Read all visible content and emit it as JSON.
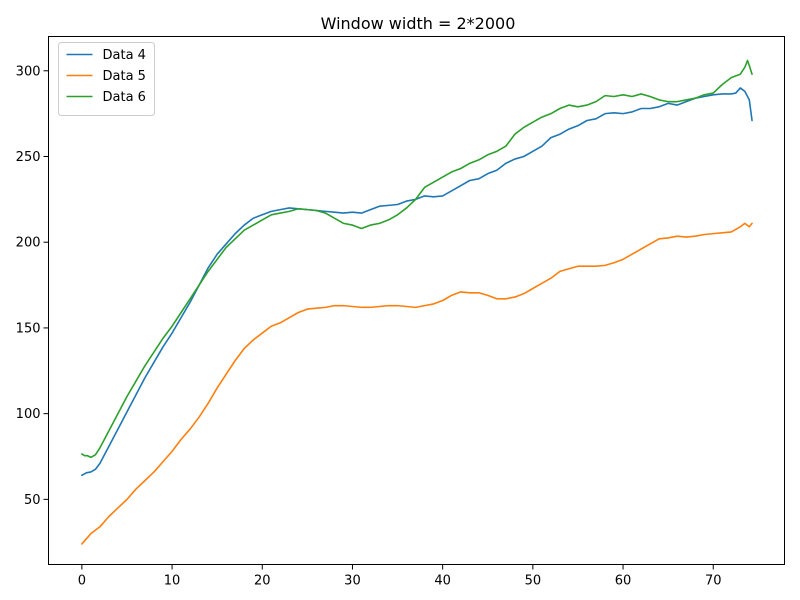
{
  "chart_data": {
    "type": "line",
    "title": "Window width = 2*2000",
    "xlabel": "",
    "ylabel": "",
    "xlim": [
      -3.7,
      77.9
    ],
    "ylim": [
      12,
      320
    ],
    "xticks": [
      0,
      10,
      20,
      30,
      40,
      50,
      60,
      70
    ],
    "yticks": [
      50,
      100,
      150,
      200,
      250,
      300
    ],
    "grid": false,
    "legend": "top-left",
    "series": [
      {
        "name": "Data 4",
        "color": "#1f77b4",
        "x": [
          0,
          0.5,
          1,
          1.5,
          2,
          3,
          4,
          5,
          6,
          7,
          8,
          9,
          10,
          11,
          12,
          13,
          14,
          15,
          16,
          17,
          18,
          19,
          20,
          21,
          22,
          23,
          24,
          25,
          26,
          27,
          28,
          29,
          30,
          31,
          32,
          33,
          34,
          35,
          36,
          37,
          38,
          39,
          40,
          41,
          42,
          43,
          44,
          45,
          46,
          47,
          48,
          49,
          50,
          51,
          52,
          53,
          54,
          55,
          56,
          57,
          58,
          59,
          60,
          61,
          62,
          63,
          64,
          65,
          66,
          67,
          68,
          69,
          70,
          71,
          72,
          72.5,
          73,
          73.5,
          74,
          74.3
        ],
        "values": [
          64,
          65.5,
          66,
          67.5,
          71,
          81,
          91,
          101,
          111,
          121,
          130,
          139,
          147,
          156,
          165,
          175,
          185,
          193,
          199,
          205,
          210,
          214,
          216,
          218,
          219,
          220,
          219.5,
          219,
          218.5,
          218,
          217.5,
          217,
          217.5,
          217,
          219,
          221,
          221.5,
          222,
          224,
          225,
          227,
          226.5,
          227,
          230,
          233,
          236,
          237,
          240,
          242,
          246,
          248.5,
          250,
          253,
          256,
          261,
          263,
          266,
          268,
          271,
          272,
          275,
          275.5,
          275,
          276,
          278,
          278,
          279,
          281,
          280,
          282,
          284,
          285,
          286,
          286.5,
          286.5,
          287,
          290,
          288,
          283,
          271
        ]
      },
      {
        "name": "Data 5",
        "color": "#ff7f0e",
        "x": [
          0,
          0.5,
          1,
          2,
          3,
          4,
          5,
          6,
          7,
          8,
          9,
          10,
          11,
          12,
          13,
          14,
          15,
          16,
          17,
          18,
          19,
          20,
          21,
          22,
          23,
          24,
          25,
          26,
          27,
          28,
          29,
          30,
          31,
          32,
          33,
          34,
          35,
          36,
          37,
          38,
          39,
          40,
          41,
          42,
          43,
          44,
          45,
          46,
          47,
          48,
          49,
          50,
          51,
          52,
          53,
          54,
          55,
          56,
          57,
          58,
          59,
          60,
          61,
          62,
          63,
          64,
          65,
          66,
          67,
          68,
          69,
          70,
          71,
          72,
          73,
          73.5,
          74,
          74.3
        ],
        "values": [
          24,
          27,
          30,
          34,
          40,
          45,
          50,
          56,
          61,
          66,
          72,
          78,
          85,
          91,
          98,
          106,
          115,
          123,
          131,
          138,
          143,
          147,
          151,
          153,
          156,
          159,
          161,
          161.5,
          162,
          163,
          163,
          162.5,
          162,
          162,
          162.5,
          163,
          163,
          162.5,
          162,
          163,
          164,
          166,
          169,
          171,
          170.5,
          170.5,
          169,
          167,
          167,
          168,
          170,
          173,
          176,
          179,
          183,
          184.5,
          186,
          186,
          186,
          186.5,
          188,
          190,
          193,
          196,
          199,
          202,
          202.5,
          203.5,
          203,
          203.5,
          204.5,
          205,
          205.5,
          206,
          209,
          211,
          209,
          211
        ]
      },
      {
        "name": "Data 6",
        "color": "#2ca02c",
        "x": [
          0,
          0.3,
          0.6,
          1,
          1.5,
          2,
          3,
          4,
          5,
          6,
          7,
          8,
          9,
          10,
          11,
          12,
          13,
          14,
          15,
          16,
          17,
          18,
          19,
          20,
          21,
          22,
          23,
          24,
          25,
          26,
          27,
          28,
          29,
          30,
          31,
          32,
          33,
          34,
          35,
          36,
          37,
          38,
          39,
          40,
          41,
          42,
          43,
          44,
          45,
          46,
          47,
          48,
          49,
          50,
          51,
          52,
          53,
          54,
          55,
          56,
          57,
          58,
          59,
          60,
          61,
          62,
          63,
          64,
          65,
          66,
          67,
          68,
          69,
          70,
          71,
          72,
          72.5,
          73,
          73.5,
          73.8,
          74,
          74.3
        ],
        "values": [
          76.5,
          75.5,
          75.5,
          74.5,
          76,
          80,
          90,
          100,
          110,
          119,
          128,
          136,
          144,
          151,
          159,
          167,
          175,
          183,
          190,
          197,
          202,
          207,
          210,
          213,
          216,
          217,
          218,
          219.5,
          219,
          218.5,
          217,
          214,
          211,
          210,
          208,
          210,
          211,
          213,
          216,
          220,
          225,
          232,
          235,
          238,
          241,
          243,
          246,
          248,
          251,
          253,
          256,
          263,
          267,
          270,
          273,
          275,
          278,
          280,
          279,
          280,
          282,
          285.5,
          285,
          286,
          285,
          286.5,
          285,
          283,
          282,
          282,
          283,
          284,
          286,
          287,
          292,
          296,
          297,
          298,
          302,
          306,
          303,
          298
        ]
      }
    ]
  }
}
